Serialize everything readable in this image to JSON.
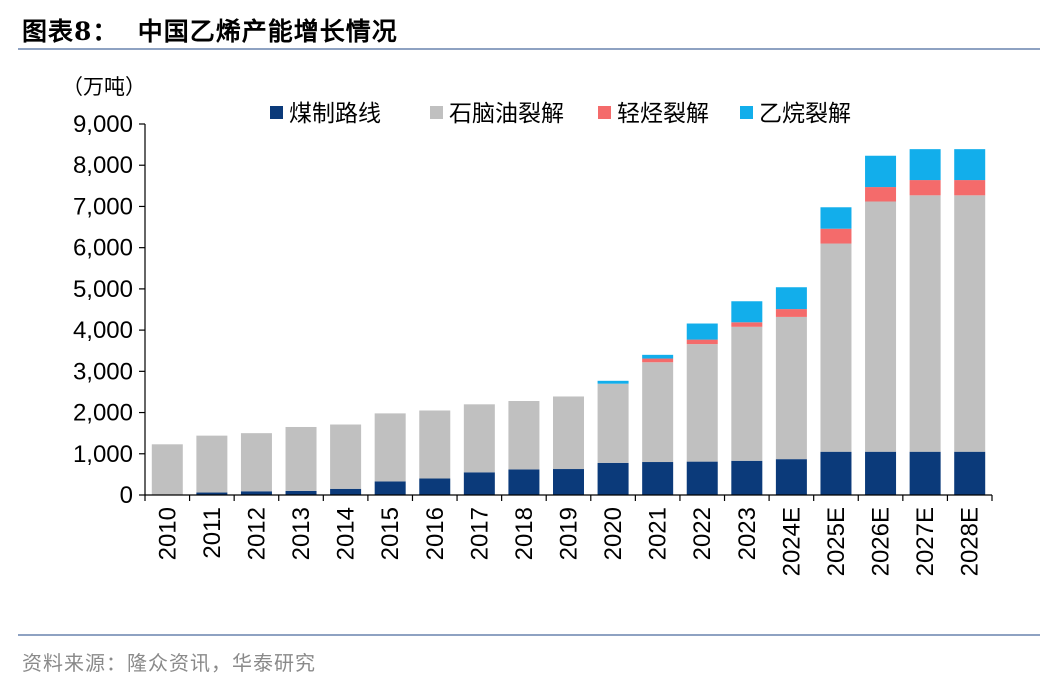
{
  "title": "图表8：  中国乙烯产能增长情况",
  "source": "资料来源：隆众资讯，华泰研究",
  "colors": {
    "rule": "#8EA2C2",
    "coal": "#0B3A7A",
    "naphtha": "#C0C0C0",
    "light_hydrocarbon": "#F46B6B",
    "ethane": "#12AEEB"
  },
  "chart_data": {
    "type": "bar",
    "stacked": true,
    "ylabel": "（万吨）",
    "ylim": [
      0,
      9000
    ],
    "yticks": [
      0,
      1000,
      2000,
      3000,
      4000,
      5000,
      6000,
      7000,
      8000,
      9000
    ],
    "ytick_labels": [
      "0",
      "1,000",
      "2,000",
      "3,000",
      "4,000",
      "5,000",
      "6,000",
      "7,000",
      "8,000",
      "9,000"
    ],
    "legend_position": "top",
    "grid": false,
    "categories": [
      "2010",
      "2011",
      "2012",
      "2013",
      "2014",
      "2015",
      "2016",
      "2017",
      "2018",
      "2019",
      "2020",
      "2021",
      "2022",
      "2023",
      "2024E",
      "2025E",
      "2026E",
      "2027E",
      "2028E"
    ],
    "series": [
      {
        "name": "煤制路线",
        "color": "#0B3A7A",
        "values": [
          10,
          60,
          90,
          100,
          150,
          330,
          400,
          550,
          620,
          630,
          780,
          800,
          810,
          830,
          870,
          1050,
          1050,
          1050,
          1050
        ]
      },
      {
        "name": "石脑油裂解",
        "color": "#C0C0C0",
        "values": [
          1220,
          1380,
          1410,
          1550,
          1560,
          1650,
          1650,
          1650,
          1660,
          1760,
          1920,
          2420,
          2850,
          3250,
          3450,
          5050,
          6070,
          6220,
          6220
        ]
      },
      {
        "name": "轻烃裂解",
        "color": "#F46B6B",
        "values": [
          0,
          0,
          0,
          0,
          0,
          0,
          0,
          0,
          0,
          0,
          0,
          90,
          110,
          110,
          190,
          360,
          350,
          370,
          370
        ]
      },
      {
        "name": "乙烷裂解",
        "color": "#12AEEB",
        "values": [
          0,
          0,
          0,
          0,
          0,
          0,
          0,
          0,
          0,
          0,
          70,
          90,
          390,
          510,
          530,
          520,
          760,
          750,
          750
        ]
      }
    ]
  }
}
